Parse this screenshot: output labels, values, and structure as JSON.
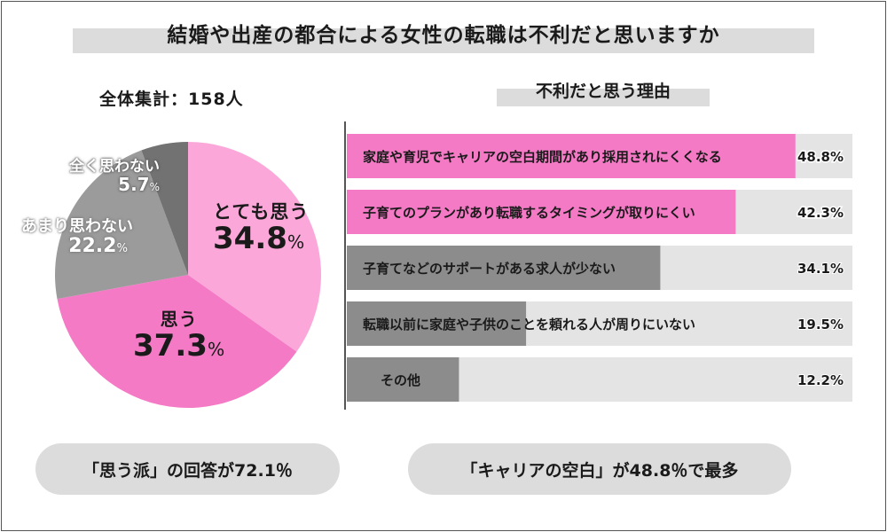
{
  "title": "結婚や出産の都合による女性の転職は不利だと思いますか",
  "total_label": "全体集計：158人",
  "chart_data": [
    {
      "type": "pie",
      "slices": [
        {
          "label": "とても思う",
          "value": 34.8,
          "color": "#fca7d9"
        },
        {
          "label": "思う",
          "value": 37.3,
          "color": "#f47ac6"
        },
        {
          "label": "あまり思わない",
          "value": 22.2,
          "color": "#9b9b9b"
        },
        {
          "label": "全く思わない",
          "value": 5.7,
          "color": "#727272"
        }
      ],
      "unit": "%"
    },
    {
      "type": "bar",
      "orientation": "horizontal",
      "title": "不利だと思う理由",
      "categories": [
        "家庭や育児でキャリアの空白期間があり採用されにくくなる",
        "子育てのプランがあり転職するタイミングが取りにくい",
        "子育てなどのサポートがある求人が少ない",
        "転職以前に家庭や子供のことを頼れる人が周りにいない",
        "その他"
      ],
      "values": [
        48.8,
        42.3,
        34.1,
        19.5,
        12.2
      ],
      "value_labels": [
        "48.8%",
        "42.3%",
        "34.1%",
        "19.5%",
        "12.2%"
      ],
      "colors": [
        "#f47ac6",
        "#f47ac6",
        "#8c8c8c",
        "#8c8c8c",
        "#8c8c8c"
      ],
      "track_color": "#e4e4e4",
      "xlim": [
        0,
        55
      ]
    }
  ],
  "summary": {
    "left": "「思う派」の回答が72.1％",
    "right": "「キャリアの空白」が48.8％で最多"
  }
}
